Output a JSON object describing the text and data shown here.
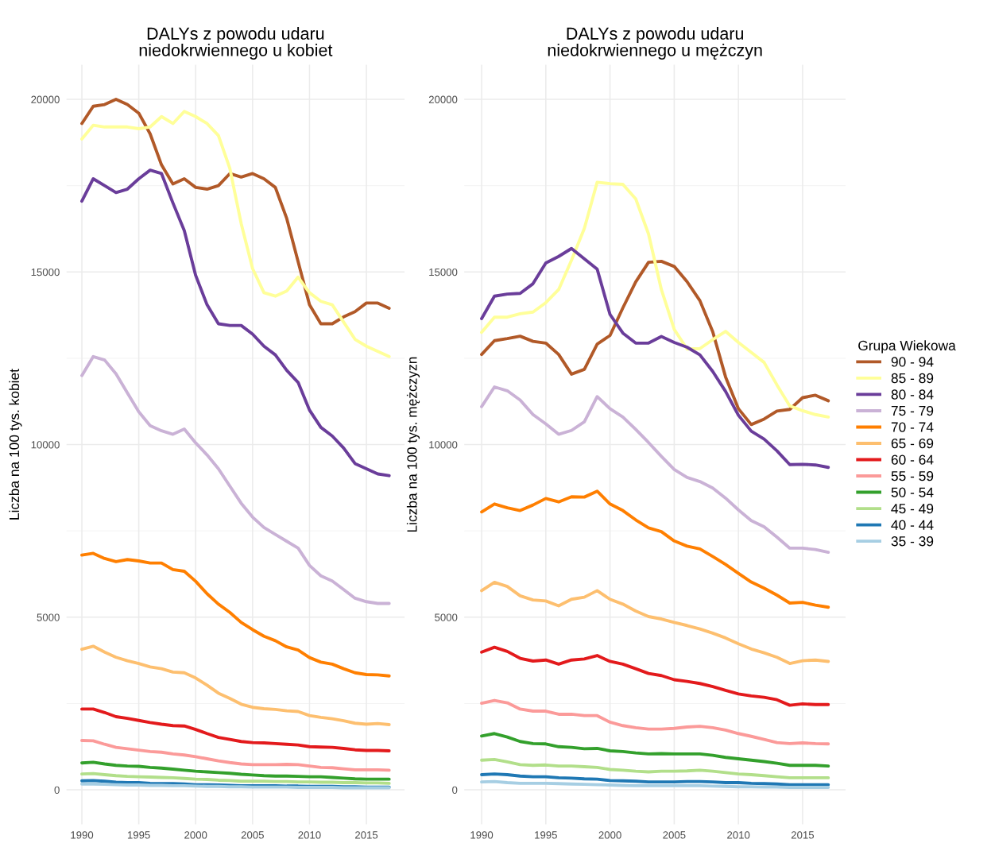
{
  "chart_data": [
    {
      "type": "line",
      "title": "DALYs z powodu udaru\nniedokrwiennego u kobiet",
      "ylabel": "Liczba na 100 tys. kobiet",
      "x": [
        1990,
        1991,
        1992,
        1993,
        1994,
        1995,
        1996,
        1997,
        1998,
        1999,
        2000,
        2001,
        2002,
        2003,
        2004,
        2005,
        2006,
        2007,
        2008,
        2009,
        2010,
        2011,
        2012,
        2013,
        2014,
        2015,
        2016,
        2017
      ],
      "xlim": [
        1988.65,
        2018.35
      ],
      "xticks": [
        1990,
        1995,
        2000,
        2005,
        2010,
        2015
      ],
      "ylim": [
        -1000,
        21000
      ],
      "yticks": [
        0,
        {
          "value": 2500,
          "label": null
        },
        5000,
        {
          "value": 7500,
          "label": null
        },
        10000,
        {
          "value": 12500,
          "label": null
        },
        15000,
        {
          "value": 17500,
          "label": null
        },
        20000
      ],
      "grid": true,
      "line_style": "solid",
      "marker": "none",
      "series": [
        {
          "color": "#b15928",
          "values": [
            19300,
            19800,
            19850,
            20000,
            19850,
            19600,
            19000,
            18100,
            17550,
            17700,
            17450,
            17400,
            17500,
            17850,
            17750,
            17850,
            17700,
            17450,
            16550,
            15300,
            14050,
            13500,
            13500,
            13700,
            13850,
            14100,
            14100,
            13950
          ]
        },
        {
          "color": "#ffff99",
          "values": [
            18850,
            19250,
            19200,
            19200,
            19200,
            19150,
            19200,
            19500,
            19300,
            19650,
            19500,
            19300,
            18950,
            18000,
            16400,
            15100,
            14400,
            14300,
            14450,
            14850,
            14400,
            14150,
            14050,
            13550,
            13050,
            12850,
            12700,
            12550
          ]
        },
        {
          "color": "#6a3d9a",
          "values": [
            17050,
            17700,
            17500,
            17300,
            17400,
            17700,
            17950,
            17850,
            17000,
            16200,
            14900,
            14050,
            13500,
            13450,
            13450,
            13200,
            12850,
            12600,
            12150,
            11800,
            11000,
            10500,
            10250,
            9900,
            9450,
            9300,
            9150,
            9100
          ]
        },
        {
          "color": "#cab2d6",
          "values": [
            12000,
            12550,
            12450,
            12050,
            11500,
            10950,
            10550,
            10400,
            10300,
            10450,
            10050,
            9700,
            9300,
            8800,
            8300,
            7900,
            7600,
            7400,
            7200,
            7000,
            6500,
            6200,
            6050,
            5800,
            5550,
            5450,
            5400,
            5400
          ]
        },
        {
          "color": "#ff7f00",
          "values": [
            6800,
            6850,
            6700,
            6610,
            6670,
            6630,
            6570,
            6570,
            6380,
            6330,
            6040,
            5680,
            5380,
            5140,
            4850,
            4640,
            4450,
            4320,
            4140,
            4050,
            3830,
            3700,
            3640,
            3510,
            3390,
            3340,
            3330,
            3300
          ]
        },
        {
          "color": "#fdbf6f",
          "values": [
            4070,
            4160,
            3990,
            3840,
            3740,
            3660,
            3560,
            3510,
            3410,
            3390,
            3240,
            3030,
            2800,
            2650,
            2480,
            2390,
            2350,
            2330,
            2290,
            2270,
            2150,
            2100,
            2060,
            2000,
            1930,
            1900,
            1920,
            1890
          ]
        },
        {
          "color": "#e31a1c",
          "values": [
            2340,
            2340,
            2240,
            2120,
            2070,
            2010,
            1950,
            1900,
            1860,
            1850,
            1750,
            1630,
            1520,
            1460,
            1400,
            1370,
            1360,
            1340,
            1320,
            1300,
            1250,
            1240,
            1230,
            1200,
            1160,
            1140,
            1140,
            1130
          ]
        },
        {
          "color": "#fb9a99",
          "values": [
            1430,
            1420,
            1320,
            1230,
            1190,
            1150,
            1110,
            1090,
            1040,
            1010,
            960,
            900,
            840,
            790,
            750,
            730,
            730,
            730,
            740,
            730,
            690,
            650,
            640,
            610,
            580,
            580,
            580,
            570
          ]
        },
        {
          "color": "#33a02c",
          "values": [
            780,
            800,
            750,
            710,
            690,
            680,
            650,
            630,
            600,
            570,
            540,
            520,
            500,
            480,
            450,
            430,
            410,
            400,
            400,
            390,
            380,
            380,
            360,
            340,
            320,
            310,
            310,
            310
          ]
        },
        {
          "color": "#b2df8a",
          "values": [
            460,
            470,
            440,
            410,
            390,
            380,
            370,
            360,
            350,
            330,
            310,
            300,
            280,
            270,
            250,
            250,
            250,
            240,
            240,
            230,
            230,
            220,
            220,
            210,
            210,
            200,
            200,
            190
          ]
        },
        {
          "color": "#1f78b4",
          "values": [
            260,
            270,
            250,
            220,
            210,
            210,
            190,
            180,
            180,
            170,
            150,
            150,
            140,
            130,
            120,
            120,
            120,
            120,
            110,
            110,
            100,
            100,
            100,
            90,
            90,
            80,
            80,
            80
          ]
        },
        {
          "color": "#a6cee3",
          "values": [
            170,
            170,
            160,
            150,
            140,
            140,
            130,
            130,
            120,
            120,
            110,
            100,
            100,
            90,
            90,
            80,
            80,
            80,
            80,
            70,
            70,
            70,
            70,
            60,
            60,
            60,
            60,
            60
          ]
        }
      ]
    },
    {
      "type": "line",
      "title": "DALYs z powodu udaru\nniedokrwiennego u mężczyn",
      "ylabel": "Liczba na 100 tys. mężczyzn",
      "x": [
        1990,
        1991,
        1992,
        1993,
        1994,
        1995,
        1996,
        1997,
        1998,
        1999,
        2000,
        2001,
        2002,
        2003,
        2004,
        2005,
        2006,
        2007,
        2008,
        2009,
        2010,
        2011,
        2012,
        2013,
        2014,
        2015,
        2016,
        2017
      ],
      "xlim": [
        1988.65,
        2018.35
      ],
      "xticks": [
        1990,
        1995,
        2000,
        2005,
        2010,
        2015
      ],
      "ylim": [
        -1000,
        21000
      ],
      "yticks": [
        0,
        {
          "value": 2500,
          "label": null
        },
        5000,
        {
          "value": 7500,
          "label": null
        },
        10000,
        {
          "value": 12500,
          "label": null
        },
        15000,
        {
          "value": 17500,
          "label": null
        },
        20000
      ],
      "grid": true,
      "legend": "right",
      "legend_title": "Grupa Wiekowa",
      "line_style": "solid",
      "marker": "none",
      "series": [
        {
          "name": "90 - 94",
          "color": "#b15928",
          "values": [
            12610,
            13010,
            13070,
            13140,
            12990,
            12940,
            12610,
            12040,
            12180,
            12910,
            13160,
            13960,
            14710,
            15280,
            15310,
            15160,
            14720,
            14170,
            13270,
            11960,
            11040,
            10580,
            10740,
            10970,
            11020,
            11360,
            11430,
            11270
          ]
        },
        {
          "name": "85 - 89",
          "color": "#ffff99",
          "values": [
            13250,
            13690,
            13690,
            13790,
            13840,
            14110,
            14490,
            15340,
            16260,
            17600,
            17560,
            17540,
            17120,
            16100,
            14490,
            13340,
            12770,
            12780,
            13040,
            13280,
            12960,
            12670,
            12380,
            11730,
            11120,
            10980,
            10870,
            10800
          ]
        },
        {
          "name": "80 - 84",
          "color": "#6a3d9a",
          "values": [
            13650,
            14300,
            14360,
            14380,
            14660,
            15260,
            15450,
            15680,
            15380,
            15080,
            13770,
            13230,
            12940,
            12940,
            13130,
            12960,
            12820,
            12600,
            12120,
            11540,
            10850,
            10390,
            10160,
            9820,
            9420,
            9430,
            9410,
            9340
          ]
        },
        {
          "name": "75 - 79",
          "color": "#cab2d6",
          "values": [
            11100,
            11670,
            11560,
            11290,
            10870,
            10600,
            10300,
            10410,
            10660,
            11390,
            11040,
            10800,
            10440,
            10060,
            9660,
            9280,
            9050,
            8930,
            8740,
            8450,
            8110,
            7800,
            7620,
            7320,
            7000,
            7000,
            6960,
            6880
          ]
        },
        {
          "name": "70 - 74",
          "color": "#ff7f00",
          "values": [
            8050,
            8280,
            8170,
            8090,
            8250,
            8440,
            8340,
            8490,
            8480,
            8650,
            8280,
            8090,
            7820,
            7590,
            7480,
            7210,
            7060,
            6980,
            6760,
            6530,
            6270,
            6020,
            5840,
            5640,
            5410,
            5430,
            5350,
            5290
          ]
        },
        {
          "name": "65 - 69",
          "color": "#fdbf6f",
          "values": [
            5770,
            6010,
            5890,
            5620,
            5500,
            5470,
            5330,
            5520,
            5580,
            5770,
            5520,
            5380,
            5180,
            5020,
            4950,
            4850,
            4760,
            4660,
            4540,
            4400,
            4230,
            4080,
            3970,
            3840,
            3660,
            3740,
            3760,
            3720
          ]
        },
        {
          "name": "60 - 64",
          "color": "#e31a1c",
          "values": [
            3990,
            4130,
            4010,
            3810,
            3730,
            3760,
            3640,
            3760,
            3790,
            3890,
            3720,
            3640,
            3510,
            3370,
            3310,
            3190,
            3140,
            3080,
            2990,
            2880,
            2780,
            2720,
            2680,
            2610,
            2450,
            2490,
            2470,
            2470
          ]
        },
        {
          "name": "55 - 59",
          "color": "#fb9a99",
          "values": [
            2510,
            2590,
            2520,
            2340,
            2280,
            2280,
            2190,
            2190,
            2150,
            2150,
            1960,
            1860,
            1800,
            1760,
            1760,
            1780,
            1820,
            1840,
            1800,
            1730,
            1630,
            1550,
            1460,
            1370,
            1340,
            1360,
            1340,
            1330
          ]
        },
        {
          "name": "50 - 54",
          "color": "#33a02c",
          "values": [
            1560,
            1630,
            1530,
            1400,
            1340,
            1330,
            1250,
            1230,
            1190,
            1200,
            1130,
            1110,
            1070,
            1040,
            1050,
            1040,
            1040,
            1040,
            1000,
            940,
            900,
            860,
            820,
            770,
            710,
            710,
            710,
            690
          ]
        },
        {
          "name": "45 - 49",
          "color": "#b2df8a",
          "values": [
            860,
            880,
            810,
            730,
            710,
            720,
            690,
            690,
            670,
            650,
            590,
            570,
            540,
            520,
            540,
            540,
            550,
            570,
            540,
            500,
            460,
            440,
            410,
            380,
            350,
            350,
            350,
            350
          ]
        },
        {
          "name": "40 - 44",
          "color": "#1f78b4",
          "values": [
            440,
            460,
            440,
            400,
            380,
            380,
            350,
            340,
            320,
            310,
            270,
            260,
            250,
            230,
            230,
            230,
            240,
            240,
            230,
            210,
            210,
            190,
            180,
            170,
            150,
            150,
            150,
            150
          ]
        },
        {
          "name": "35 - 39",
          "color": "#a6cee3",
          "values": [
            230,
            240,
            210,
            190,
            190,
            190,
            180,
            170,
            160,
            150,
            140,
            130,
            120,
            120,
            120,
            120,
            120,
            120,
            110,
            100,
            90,
            90,
            80,
            80,
            70,
            70,
            70,
            70
          ]
        }
      ]
    }
  ]
}
